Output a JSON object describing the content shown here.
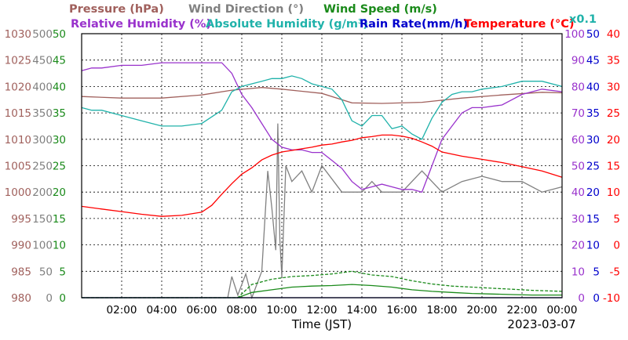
{
  "chart_data": {
    "type": "line",
    "date": "2023-03-07",
    "xlabel": "Time (JST)",
    "x_ticks": [
      "02:00",
      "04:00",
      "06:00",
      "08:00",
      "10:00",
      "12:00",
      "14:00",
      "16:00",
      "18:00",
      "20:00",
      "22:00",
      "00:00"
    ],
    "x_range_hours": [
      0,
      24
    ],
    "grid": true,
    "axes": [
      {
        "id": "pressure",
        "unit_label": "Pressure (hPa)",
        "color": "#a0605c",
        "side": "left",
        "range": [
          980,
          1030
        ],
        "ticks": [
          "980",
          "985",
          "990",
          "995",
          "1000",
          "1005",
          "1010",
          "1015",
          "1020",
          "1025",
          "1030"
        ]
      },
      {
        "id": "winddir",
        "unit_label": "Wind Direction (°)",
        "color": "#808080",
        "side": "left",
        "range": [
          0,
          500
        ],
        "ticks": [
          "0",
          "50",
          "100",
          "150",
          "200",
          "250",
          "300",
          "350",
          "400",
          "450",
          "500"
        ]
      },
      {
        "id": "windspeed",
        "unit_label": "Wind Speed (m/s)",
        "color": "#1a8a1a",
        "side": "left",
        "range": [
          0,
          50
        ],
        "ticks": [
          "0",
          "5",
          "10",
          "15",
          "20",
          "25",
          "30",
          "35",
          "40",
          "45",
          "50"
        ]
      },
      {
        "id": "rh",
        "unit_label": "Relative Humidity (%)",
        "color": "#9932cc",
        "side": "right",
        "range": [
          0,
          100
        ],
        "ticks": [
          "0",
          "10",
          "20",
          "30",
          "40",
          "50",
          "60",
          "70",
          "80",
          "90",
          "100"
        ]
      },
      {
        "id": "rain",
        "unit_label": "Rain Rate(mm/h)",
        "color": "#0000cc",
        "side": "right",
        "range": [
          0,
          50
        ],
        "ticks": [
          "0",
          "5",
          "10",
          "15",
          "20",
          "25",
          "30",
          "35",
          "40",
          "45",
          "50"
        ]
      },
      {
        "id": "temp",
        "unit_label": "Temperature (°C)",
        "color": "#ff0000",
        "side": "right",
        "range": [
          -10,
          40
        ],
        "ticks": [
          "-10",
          "-5",
          "0",
          "5",
          "10",
          "15",
          "20",
          "25",
          "30",
          "35",
          "40"
        ]
      }
    ],
    "abs_humidity_axis": {
      "unit_label": "x0.1",
      "color": "#20b2aa"
    },
    "series": [
      {
        "name": "Pressure (hPa)",
        "axis": "pressure",
        "color": "#a0605c",
        "x": [
          0,
          2,
          4,
          6,
          7.5,
          9,
          10,
          12,
          13.5,
          15,
          17,
          19,
          21,
          23,
          24
        ],
        "y": [
          1018.1,
          1017.8,
          1017.8,
          1018.4,
          1019.3,
          1019.8,
          1019.5,
          1018.7,
          1016.9,
          1016.8,
          1017.0,
          1017.8,
          1018.4,
          1018.9,
          1018.8
        ]
      },
      {
        "name": "Wind Direction (°)",
        "axis": "winddir",
        "color": "#808080",
        "style": "jagged",
        "x": [
          0,
          7.3,
          7.5,
          7.8,
          8.2,
          8.5,
          9,
          9.3,
          9.5,
          9.7,
          9.8,
          9.9,
          10,
          10.2,
          10.5,
          11,
          11.5,
          12,
          13,
          14,
          14.5,
          15,
          16,
          17,
          18,
          19,
          20,
          21,
          22,
          23,
          24
        ],
        "y": [
          0,
          0,
          40,
          5,
          45,
          0,
          50,
          240,
          170,
          90,
          330,
          110,
          40,
          250,
          220,
          240,
          200,
          250,
          200,
          200,
          220,
          200,
          200,
          240,
          200,
          220,
          230,
          220,
          220,
          200,
          210
        ]
      },
      {
        "name": "Wind Speed (m/s) avg",
        "axis": "windspeed",
        "color": "#1a8a1a",
        "x": [
          0,
          7.8,
          8.5,
          9.5,
          10.5,
          11.5,
          12.5,
          13.5,
          14.5,
          15.5,
          16.5,
          17.5,
          18.5,
          19.5,
          20.5,
          21.5,
          22.5,
          24
        ],
        "y": [
          0,
          0,
          1,
          1.5,
          2,
          2.2,
          2.3,
          2.5,
          2.3,
          2.0,
          1.5,
          1.2,
          1.0,
          0.8,
          0.7,
          0.6,
          0.5,
          0.5
        ]
      },
      {
        "name": "Wind Speed (m/s) gust",
        "axis": "windspeed",
        "color": "#1a8a1a",
        "dash": true,
        "x": [
          0,
          7.8,
          8.5,
          9.5,
          10.5,
          11.5,
          12.5,
          13.5,
          14.5,
          15.5,
          16.5,
          17.5,
          18.5,
          19.5,
          20.5,
          21.5,
          22.5,
          24
        ],
        "y": [
          0,
          0,
          2.5,
          3.5,
          4.0,
          4.2,
          4.5,
          5.0,
          4.3,
          4.0,
          3.2,
          2.6,
          2.2,
          2.0,
          1.8,
          1.6,
          1.4,
          1.2
        ]
      },
      {
        "name": "Relative Humidity (%)",
        "axis": "rh",
        "color": "#9932cc",
        "x": [
          0,
          0.5,
          1,
          2,
          3,
          4,
          5,
          6,
          7,
          7.5,
          8,
          8.5,
          9,
          9.5,
          10,
          10.5,
          11,
          11.5,
          12,
          12.5,
          13,
          13.5,
          14,
          14.5,
          15,
          15.5,
          16,
          16.5,
          17,
          17.5,
          18,
          18.5,
          19,
          19.5,
          20,
          21,
          22,
          23,
          24
        ],
        "y": [
          86,
          87,
          87,
          88,
          88,
          89,
          89,
          89,
          89,
          85,
          77,
          72,
          66,
          60,
          57,
          56,
          56,
          55,
          55,
          52,
          49,
          44,
          41,
          42,
          43,
          42,
          41,
          41,
          40,
          50,
          60,
          65,
          70,
          72,
          72,
          73,
          77,
          79,
          78
        ]
      },
      {
        "name": "Absolute Humidity (g/m³)",
        "axis": "rh",
        "color": "#20b2aa",
        "x": [
          0,
          0.5,
          1,
          2,
          3,
          4,
          5,
          6,
          7,
          7.5,
          8,
          8.5,
          9,
          9.5,
          10,
          10.5,
          11,
          11.5,
          12,
          12.5,
          13,
          13.5,
          14,
          14.5,
          15,
          15.5,
          16,
          16.5,
          17,
          17.5,
          18,
          18.5,
          19,
          19.5,
          20,
          21,
          22,
          23,
          24
        ],
        "y": [
          72,
          71,
          71,
          69,
          67,
          65,
          65,
          66,
          71,
          78,
          80,
          81,
          82,
          83,
          83,
          84,
          83,
          81,
          80,
          79,
          75,
          67,
          65,
          69,
          69,
          64,
          65,
          62,
          60,
          68,
          74,
          77,
          78,
          78,
          79,
          80,
          82,
          82,
          80
        ]
      },
      {
        "name": "Rain Rate(mm/h)",
        "axis": "rain",
        "color": "#0000cc",
        "x": [
          0,
          24
        ],
        "y": [
          0,
          0
        ]
      },
      {
        "name": "Temperature (°C)",
        "axis": "temp",
        "color": "#ff0000",
        "x": [
          0,
          1,
          2,
          3,
          4,
          5,
          6,
          6.5,
          7,
          7.5,
          8,
          8.5,
          9,
          9.5,
          10,
          10.5,
          11,
          11.5,
          12,
          12.5,
          13,
          13.5,
          14,
          14.5,
          15,
          15.5,
          16,
          16.5,
          17,
          17.5,
          18,
          19,
          20,
          21,
          22,
          23,
          24
        ],
        "y": [
          7.3,
          6.8,
          6.3,
          5.8,
          5.4,
          5.6,
          6.2,
          7.5,
          9.6,
          11.6,
          13.4,
          14.6,
          16.1,
          17,
          17.6,
          17.9,
          18.2,
          18.5,
          18.9,
          19.1,
          19.5,
          19.8,
          20.3,
          20.5,
          20.8,
          20.8,
          20.6,
          20.2,
          19.5,
          18.7,
          17.6,
          16.8,
          16.2,
          15.6,
          14.8,
          14,
          12.8
        ]
      }
    ]
  }
}
